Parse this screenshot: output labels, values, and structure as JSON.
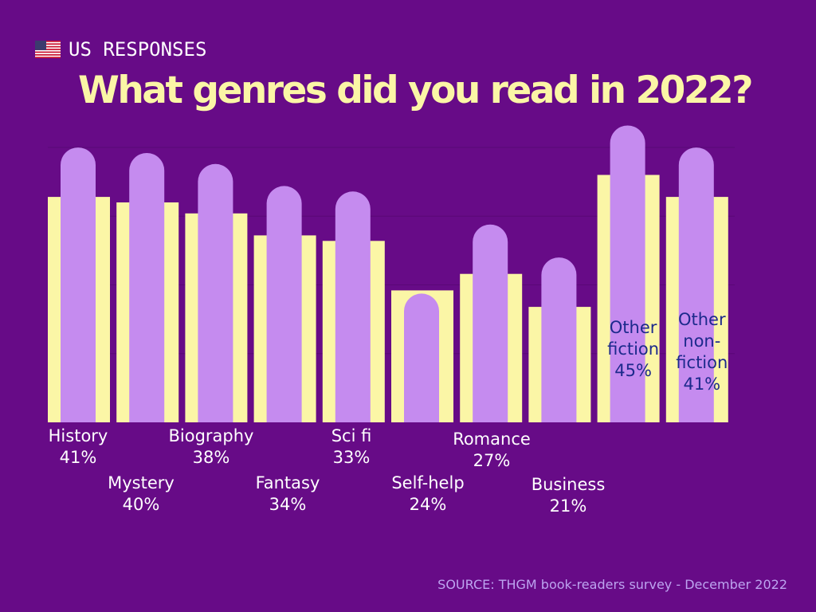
{
  "header": {
    "flag_icon": "us-flag-icon",
    "subtitle": "US RESPONSES",
    "title": "What genres did you read in 2022?"
  },
  "source": "SOURCE: THGM book-readers survey - December 2022",
  "colors": {
    "background": "#670B87",
    "bar_back": "#FBF6A6",
    "bar_front": "#C58BEF",
    "title": "#FBF6A6",
    "label_outside": "#FFFFFF",
    "label_inside": "#1C2A8C",
    "source": "#BDA4F0"
  },
  "chart_data": {
    "type": "bar",
    "title": "What genres did you read in 2022?",
    "categories": [
      "History",
      "Mystery",
      "Biography",
      "Fantasy",
      "Sci fi",
      "Self-help",
      "Romance",
      "Business",
      "Other fiction",
      "Other non-fiction"
    ],
    "label_lines": [
      [
        "History",
        "41%"
      ],
      [
        "Mystery",
        "40%"
      ],
      [
        "Biography",
        "38%"
      ],
      [
        "Fantasy",
        "34%"
      ],
      [
        "Sci fi",
        "33%"
      ],
      [
        "Self-help",
        "24%"
      ],
      [
        "Romance",
        "27%"
      ],
      [
        "Business",
        "21%"
      ],
      [
        "Other",
        "fiction",
        "45%"
      ],
      [
        "Other",
        "non-",
        "fiction",
        "41%"
      ]
    ],
    "values": [
      41,
      40,
      38,
      34,
      33,
      24,
      27,
      21,
      45,
      41
    ],
    "ylim": [
      0,
      50
    ],
    "grid": true,
    "legend": "none",
    "xlabel": "",
    "ylabel": ""
  }
}
